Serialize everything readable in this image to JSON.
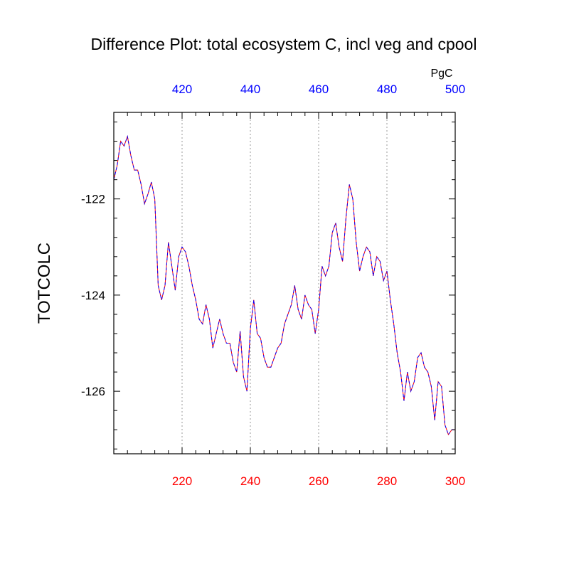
{
  "chart_data": {
    "type": "line",
    "title": "Difference Plot: total ecosystem C, incl veg and cpool",
    "units_label": "PgC",
    "ylabel": "TOTCOLC",
    "xlabel": "",
    "xlim": [
      200,
      300
    ],
    "ylim": [
      -127.3,
      -120.2
    ],
    "x_ticks": [
      220,
      240,
      260,
      280,
      300
    ],
    "top_x_ticks": [
      420,
      440,
      460,
      480,
      500
    ],
    "top_offset": 200,
    "y_ticks": [
      -122,
      -124,
      -126
    ],
    "grid": "vertical-dotted",
    "colors": {
      "line_solid": "#ff0000",
      "line_dash": "#0000ff",
      "bottom_ticks": "#ff0000",
      "top_ticks": "#0000ff"
    },
    "series": [
      {
        "x": [
          200,
          201,
          202,
          203,
          204,
          205,
          206,
          207,
          208,
          209,
          210,
          211,
          212,
          213,
          214,
          215,
          216,
          217,
          218,
          219,
          220,
          221,
          222,
          223,
          224,
          225,
          226,
          227,
          228,
          229,
          230,
          231,
          232,
          233,
          234,
          235,
          236,
          237,
          238,
          239,
          240,
          241,
          242,
          243,
          244,
          245,
          246,
          247,
          248,
          249,
          250,
          251,
          252,
          253,
          254,
          255,
          256,
          257,
          258,
          259,
          260,
          261,
          262,
          263,
          264,
          265,
          266,
          267,
          268,
          269,
          270,
          271,
          272,
          273,
          274,
          275,
          276,
          277,
          278,
          279,
          280,
          281,
          282,
          283,
          284,
          285,
          286,
          287,
          288,
          289,
          290,
          291,
          292,
          293,
          294,
          295,
          296,
          297,
          298,
          299,
          300
        ],
        "values": [
          -121.6,
          -121.3,
          -120.8,
          -120.9,
          -120.7,
          -121.1,
          -121.4,
          -121.4,
          -121.7,
          -122.1,
          -121.9,
          -121.65,
          -122.0,
          -123.8,
          -124.1,
          -123.8,
          -122.9,
          -123.4,
          -123.9,
          -123.2,
          -123.0,
          -123.1,
          -123.4,
          -123.8,
          -124.1,
          -124.5,
          -124.6,
          -124.2,
          -124.5,
          -125.1,
          -124.8,
          -124.5,
          -124.8,
          -125.0,
          -125.0,
          -125.4,
          -125.6,
          -124.75,
          -125.7,
          -126.0,
          -124.7,
          -124.1,
          -124.8,
          -124.9,
          -125.3,
          -125.5,
          -125.5,
          -125.3,
          -125.1,
          -125.0,
          -124.6,
          -124.4,
          -124.2,
          -123.8,
          -124.3,
          -124.5,
          -124.0,
          -124.2,
          -124.3,
          -124.8,
          -124.3,
          -123.4,
          -123.6,
          -123.4,
          -122.7,
          -122.5,
          -123.0,
          -123.3,
          -122.4,
          -121.7,
          -122.0,
          -122.9,
          -123.5,
          -123.2,
          -123.0,
          -123.1,
          -123.6,
          -123.2,
          -123.3,
          -123.7,
          -123.5,
          -124.1,
          -124.6,
          -125.2,
          -125.6,
          -126.2,
          -125.6,
          -126.0,
          -125.8,
          -125.3,
          -125.2,
          -125.5,
          -125.6,
          -125.9,
          -126.6,
          -125.8,
          -125.9,
          -126.7,
          -126.9,
          -126.8,
          -126.8
        ]
      }
    ]
  }
}
